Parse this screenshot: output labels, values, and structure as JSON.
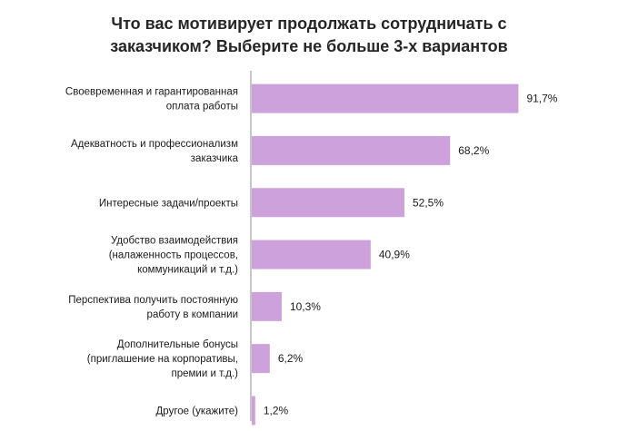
{
  "chart_data": {
    "type": "bar",
    "orientation": "horizontal",
    "title_lines": [
      "Что вас мотивирует продолжать сотрудничать с",
      "заказчиком? Выберите не больше 3-х вариантов"
    ],
    "categories": [
      [
        "Своевременная и гарантированная",
        "оплата работы"
      ],
      [
        "Адекватность и профессионализм",
        "заказчика"
      ],
      [
        "Интересные задачи/проекты"
      ],
      [
        "Удобство взаимодействия",
        "(налаженность процессов,",
        "коммуникаций  и т.д.)"
      ],
      [
        "Перспектива получить постоянную",
        "работу в компании"
      ],
      [
        "Дополнительные бонусы",
        "(приглашение  на корпоративы,",
        "премии и т.д.)"
      ],
      [
        "Другое (укажите)"
      ]
    ],
    "values": [
      91.7,
      68.2,
      52.5,
      40.9,
      10.3,
      6.2,
      1.2
    ],
    "value_labels": [
      "91,7%",
      "68,2%",
      "52,5%",
      "40,9%",
      "10,3%",
      "6,2%",
      "1,2%"
    ],
    "xlim": [
      0,
      100
    ],
    "bar_color": "#cda2dc",
    "axis_color": "#8c8c8c",
    "grid": false,
    "legend": "none"
  }
}
